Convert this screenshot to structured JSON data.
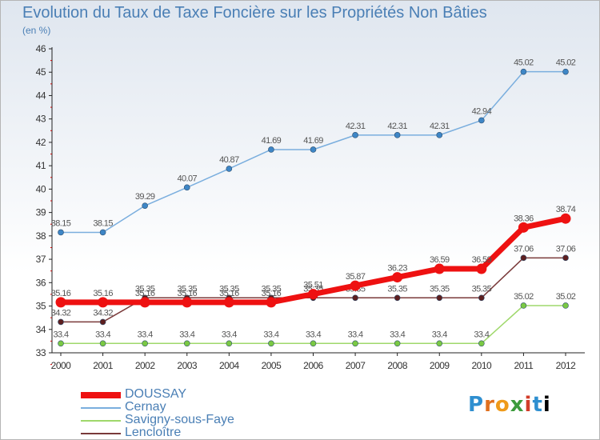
{
  "title": "Evolution du Taux de Taxe Foncière sur les Propriétés Non Bâties",
  "subtitle": "(en %)",
  "logo": "Proxiti",
  "chart_data": {
    "type": "line",
    "x": [
      "2000",
      "2001",
      "2002",
      "2003",
      "2004",
      "2005",
      "2006",
      "2007",
      "2008",
      "2009",
      "2010",
      "2011",
      "2012"
    ],
    "ylim": [
      33,
      46
    ],
    "yticks": [
      33,
      34,
      35,
      36,
      37,
      38,
      39,
      40,
      41,
      42,
      43,
      44,
      45,
      46
    ],
    "grid": false,
    "legend_position": "bottom-left",
    "series": [
      {
        "name": "Savigny-sous-Faye",
        "color": "#9fd86b",
        "marker": "#7ac943",
        "width": 1.5,
        "values": [
          33.4,
          33.4,
          33.4,
          33.4,
          33.4,
          33.4,
          33.4,
          33.4,
          33.4,
          33.4,
          33.4,
          35.02,
          35.02
        ]
      },
      {
        "name": "Lencloître",
        "color": "#7a3a3a",
        "marker": "#5e1f1f",
        "width": 1.5,
        "values": [
          34.32,
          34.32,
          35.35,
          35.35,
          35.35,
          35.35,
          35.35,
          35.35,
          35.35,
          35.35,
          35.35,
          37.06,
          37.06
        ]
      },
      {
        "name": "Cernay",
        "color": "#7aaede",
        "marker": "#3e86c6",
        "width": 1.5,
        "values": [
          38.15,
          38.15,
          39.29,
          40.07,
          40.87,
          41.69,
          41.69,
          42.31,
          42.31,
          42.31,
          42.94,
          45.02,
          45.02
        ]
      },
      {
        "name": "DOUSSAY",
        "color": "#ee1111",
        "marker": "#ee1111",
        "width": 7,
        "values": [
          35.16,
          35.16,
          35.16,
          35.16,
          35.16,
          35.16,
          35.51,
          35.87,
          36.23,
          36.59,
          36.59,
          38.36,
          38.74
        ]
      }
    ]
  },
  "legend_order": [
    "DOUSSAY",
    "Cernay",
    "Savigny-sous-Faye",
    "Lencloître"
  ]
}
